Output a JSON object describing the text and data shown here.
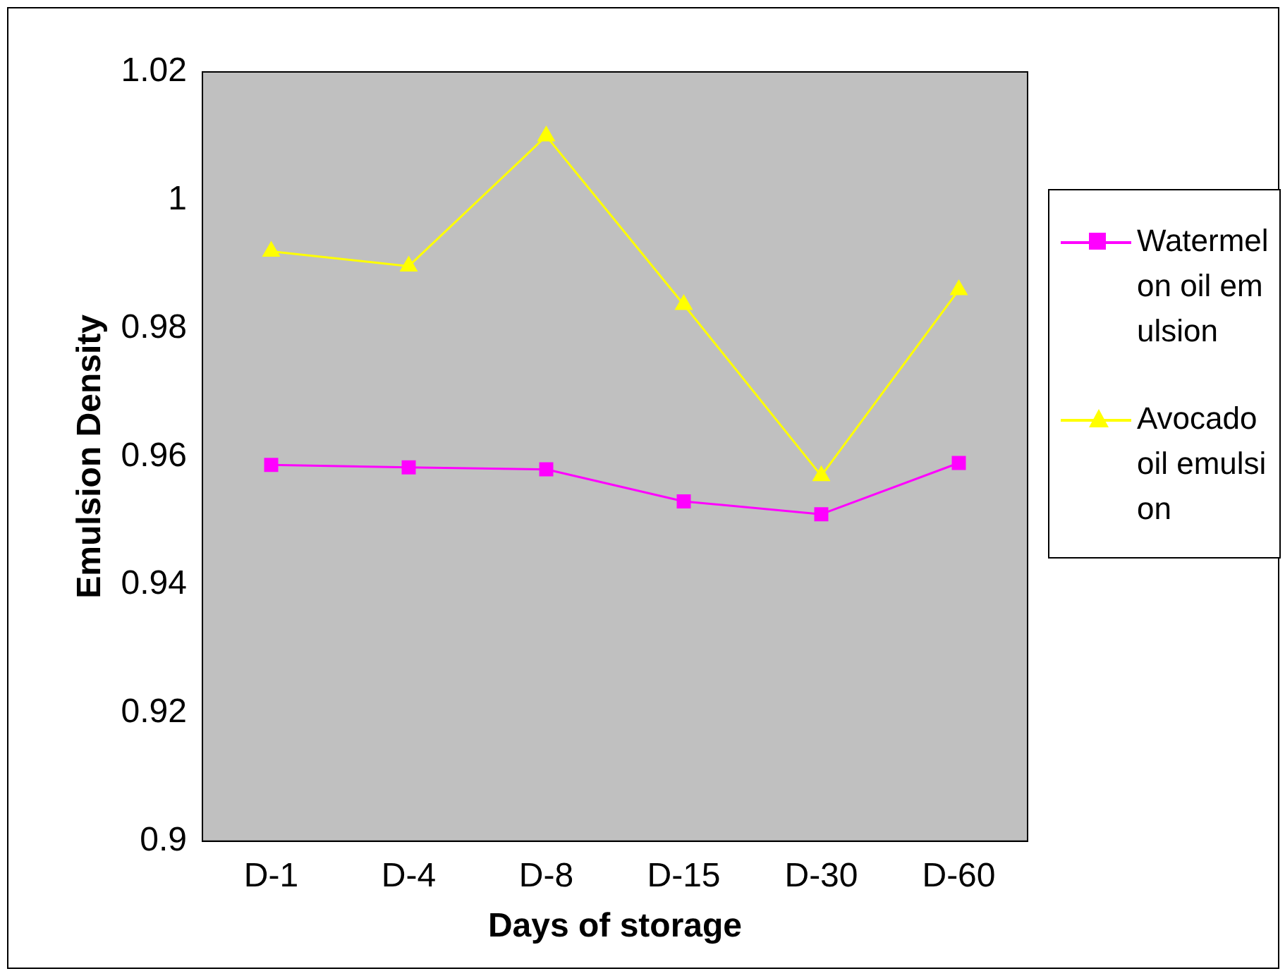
{
  "chart_data": {
    "type": "line",
    "xlabel": "Days of storage",
    "ylabel": "Emulsion Density",
    "categories": [
      "D-1",
      "D-4",
      "D-8",
      "D-15",
      "D-30",
      "D-60"
    ],
    "series": [
      {
        "name": "Watermelon oil emulsion",
        "color": "#ff00ff",
        "marker": "square",
        "values": [
          0.9587,
          0.9583,
          0.958,
          0.953,
          0.951,
          0.959
        ]
      },
      {
        "name": "Avocado oil emulsion",
        "color": "#ffff00",
        "marker": "triangle",
        "values": [
          0.992,
          0.9897,
          1.01,
          0.9837,
          0.957,
          0.986
        ]
      }
    ],
    "ylim": [
      0.9,
      1.02
    ],
    "yticks": [
      0.9,
      0.92,
      0.94,
      0.96,
      0.98,
      1,
      1.02
    ],
    "grid": false,
    "legend": "right"
  }
}
